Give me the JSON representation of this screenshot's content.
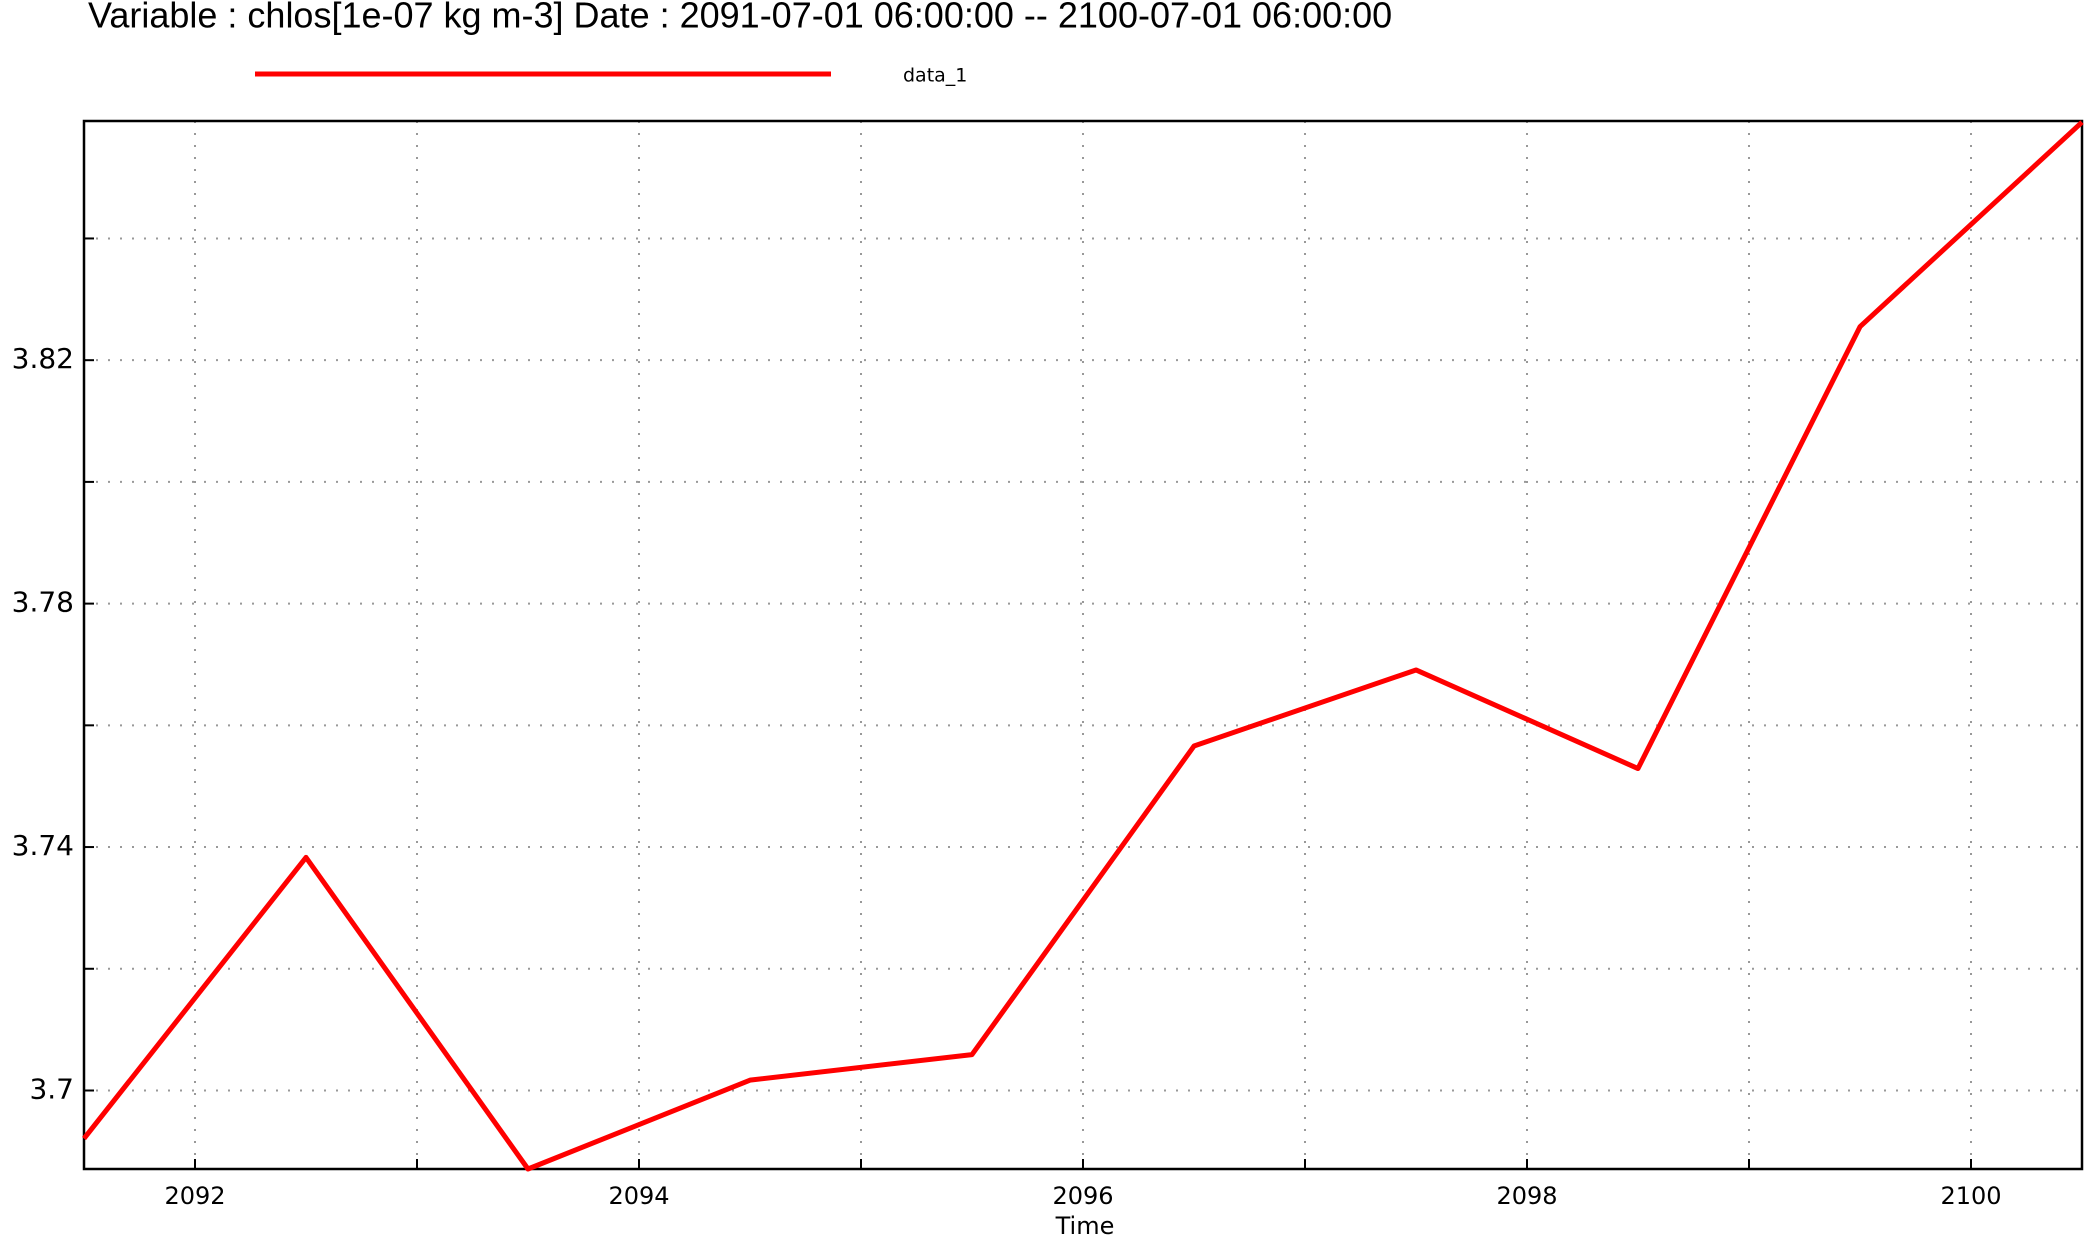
{
  "chart_data": {
    "type": "line",
    "title": "Variable : chlos[1e-07 kg m-3]  Date :  2091-07-01 06:00:00 -- 2100-07-01 06:00:00",
    "x_label": "Time",
    "x": [
      2091.5,
      2092.5,
      2093.5,
      2094.5,
      2095.5,
      2096.5,
      2097.5,
      2098.5,
      2099.5,
      2100.5
    ],
    "series": [
      {
        "name": "data_1",
        "color": "#ff0000",
        "values": [
          3.6921,
          3.7383,
          3.6871,
          3.7017,
          3.7059,
          3.7566,
          3.7691,
          3.7529,
          3.8255,
          3.8591
        ]
      }
    ],
    "xlim": [
      2091.5,
      2100.5
    ],
    "xticks": [
      2092,
      2094,
      2096,
      2098,
      2100
    ],
    "minor_xticks": [
      2093,
      2095,
      2097,
      2099
    ],
    "ylim": [
      3.6871,
      3.8593
    ],
    "yticks": [
      3.7,
      3.74,
      3.78,
      3.82
    ],
    "minor_yticks": [
      3.72,
      3.76,
      3.8,
      3.84
    ],
    "grid": true
  }
}
